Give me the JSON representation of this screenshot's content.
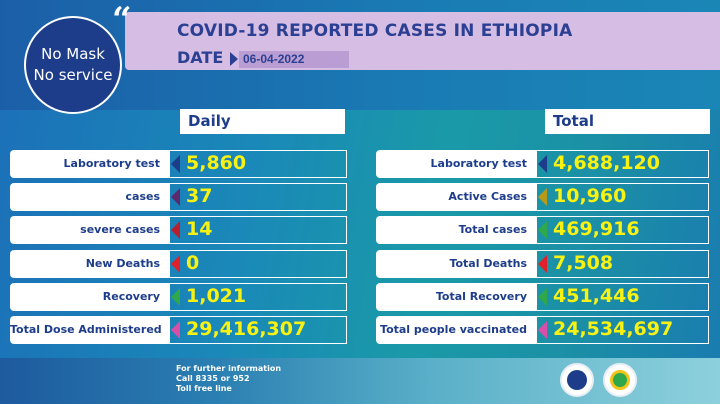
{
  "banner": {
    "title": "COVID-19 REPORTED CASES IN ETHIOPIA",
    "date_label": "DATE",
    "date_value": "06-04-2022"
  },
  "logo": {
    "line1": "No Mask",
    "line2": "No service"
  },
  "daily": {
    "header": "Daily",
    "rows": [
      {
        "label": "Laboratory test",
        "value": "5,860",
        "marker_color": "#1d3d8a"
      },
      {
        "label": "cases",
        "value": "37",
        "marker_color": "#5b2a6e"
      },
      {
        "label": "severe cases",
        "value": "14",
        "marker_color": "#b81f2f"
      },
      {
        "label": "New Deaths",
        "value": "0",
        "marker_color": "#e0202a"
      },
      {
        "label": "Recovery",
        "value": "1,021",
        "marker_color": "#2ea84a"
      },
      {
        "label": "Total Dose Administered",
        "value": "29,416,307",
        "marker_color": "#d84fa8"
      }
    ]
  },
  "total": {
    "header": "Total",
    "rows": [
      {
        "label": "Laboratory test",
        "value": "4,688,120",
        "marker_color": "#1d3d8a"
      },
      {
        "label": "Active Cases",
        "value": "10,960",
        "marker_color": "#b89a1a"
      },
      {
        "label": "Total cases",
        "value": "469,916",
        "marker_color": "#2ea84a"
      },
      {
        "label": "Total Deaths",
        "value": "7,508",
        "marker_color": "#e0202a"
      },
      {
        "label": "Total Recovery",
        "value": "451,446",
        "marker_color": "#2ea84a"
      },
      {
        "label": "Total people vaccinated",
        "value": "24,534,697",
        "marker_color": "#d84fa8"
      }
    ]
  },
  "footer": {
    "line1": "For further information",
    "line2": "Call 8335 or 952",
    "line3": "Toll free line"
  },
  "colors": {
    "accent_yellow": "#f7f213",
    "navy": "#1d3d8a",
    "banner_purple": "#d6bde3"
  }
}
